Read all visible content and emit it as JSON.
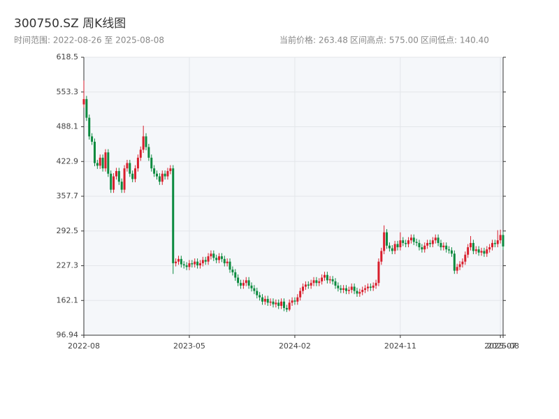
{
  "chart_data": {
    "type": "candlestick",
    "title": "300750.SZ 周K线图",
    "subtitle": "时间范围: 2022-08-26 至 2025-08-08",
    "stats": [
      "当前价格: 263.48",
      "区间高点: 575.00",
      "区间低点: 140.40"
    ],
    "up_color": "#d81e2c",
    "down_color": "#0b8a3e",
    "grid": true,
    "ylim": [
      96.94,
      618.5
    ],
    "yticks": [
      96.94,
      162.1,
      227.3,
      292.5,
      357.7,
      422.9,
      488.1,
      553.3,
      618.5
    ],
    "categories": [
      "2022-08",
      null,
      null,
      null,
      null,
      null,
      null,
      null,
      null,
      null,
      null,
      null,
      null,
      null,
      null,
      null,
      null,
      null,
      null,
      null,
      null,
      null,
      null,
      null,
      null,
      null,
      null,
      null,
      null,
      null,
      null,
      null,
      null,
      null,
      null,
      null,
      null,
      null,
      null,
      "2023-05",
      null,
      null,
      null,
      null,
      null,
      null,
      null,
      null,
      null,
      null,
      null,
      null,
      null,
      null,
      null,
      null,
      null,
      null,
      null,
      null,
      null,
      null,
      null,
      null,
      null,
      null,
      null,
      null,
      null,
      null,
      null,
      null,
      null,
      null,
      null,
      null,
      null,
      null,
      "2024-02",
      null,
      null,
      null,
      null,
      null,
      null,
      null,
      null,
      null,
      null,
      null,
      null,
      null,
      null,
      null,
      null,
      null,
      null,
      null,
      null,
      null,
      null,
      null,
      null,
      null,
      null,
      null,
      null,
      null,
      null,
      null,
      null,
      null,
      null,
      null,
      null,
      null,
      null,
      "2024-11",
      null,
      null,
      null,
      null,
      null,
      null,
      null,
      null,
      null,
      null,
      null,
      null,
      null,
      null,
      null,
      null,
      null,
      null,
      null,
      null,
      null,
      null,
      null,
      null,
      null,
      null,
      null,
      null,
      null,
      null,
      null,
      null,
      null,
      null,
      null,
      null,
      "2025-07",
      "2025-08"
    ],
    "open": [
      530,
      540,
      505,
      470,
      460,
      420,
      415,
      430,
      410,
      440,
      400,
      370,
      395,
      405,
      385,
      370,
      410,
      420,
      400,
      390,
      410,
      430,
      445,
      470,
      450,
      430,
      410,
      400,
      395,
      385,
      400,
      395,
      405,
      410,
      232,
      235,
      240,
      230,
      228,
      225,
      232,
      230,
      235,
      228,
      232,
      238,
      235,
      245,
      250,
      242,
      238,
      245,
      240,
      232,
      235,
      220,
      215,
      205,
      195,
      190,
      195,
      200,
      190,
      185,
      180,
      172,
      168,
      160,
      165,
      158,
      160,
      155,
      158,
      152,
      160,
      148,
      145,
      158,
      162,
      160,
      168,
      180,
      188,
      192,
      190,
      195,
      200,
      195,
      198,
      205,
      210,
      200,
      202,
      198,
      190,
      185,
      182,
      185,
      180,
      182,
      188,
      180,
      175,
      178,
      182,
      185,
      188,
      186,
      190,
      195,
      235,
      255,
      290,
      265,
      260,
      255,
      268,
      262,
      275,
      270,
      268,
      275,
      280,
      272,
      270,
      262,
      258,
      265,
      270,
      268,
      275,
      280,
      270,
      262,
      265,
      258,
      256,
      250,
      218,
      225,
      230,
      235,
      248,
      262,
      270,
      255,
      258,
      252,
      255,
      250,
      258,
      262,
      270,
      268,
      275,
      285
    ],
    "high": [
      575,
      546,
      511,
      476,
      466,
      426,
      436,
      436,
      446,
      446,
      406,
      401,
      411,
      411,
      391,
      416,
      426,
      426,
      406,
      416,
      436,
      451,
      490,
      476,
      456,
      436,
      416,
      406,
      401,
      406,
      406,
      411,
      416,
      416,
      241,
      246,
      246,
      236,
      234,
      238,
      238,
      241,
      241,
      238,
      244,
      244,
      251,
      256,
      256,
      248,
      251,
      251,
      246,
      241,
      241,
      226,
      221,
      211,
      201,
      201,
      206,
      206,
      196,
      191,
      186,
      178,
      174,
      171,
      171,
      166,
      166,
      164,
      164,
      166,
      166,
      154,
      164,
      168,
      168,
      174,
      186,
      194,
      198,
      198,
      201,
      206,
      206,
      204,
      211,
      216,
      216,
      208,
      208,
      204,
      196,
      191,
      191,
      191,
      188,
      194,
      194,
      186,
      184,
      188,
      191,
      194,
      194,
      196,
      201,
      241,
      261,
      303,
      296,
      271,
      266,
      274,
      274,
      290,
      281,
      276,
      281,
      286,
      286,
      278,
      276,
      268,
      271,
      276,
      276,
      281,
      286,
      286,
      276,
      271,
      271,
      264,
      262,
      256,
      231,
      236,
      241,
      254,
      268,
      283,
      276,
      264,
      264,
      261,
      261,
      264,
      268,
      276,
      276,
      294,
      295,
      291
    ],
    "low": [
      524,
      499,
      464,
      454,
      414,
      409,
      409,
      404,
      404,
      394,
      364,
      364,
      389,
      379,
      364,
      364,
      404,
      394,
      384,
      384,
      404,
      424,
      439,
      444,
      424,
      404,
      394,
      389,
      379,
      379,
      389,
      389,
      399,
      212,
      226,
      229,
      224,
      222,
      219,
      219,
      224,
      224,
      222,
      222,
      226,
      229,
      229,
      239,
      236,
      232,
      232,
      234,
      226,
      226,
      214,
      209,
      199,
      189,
      184,
      184,
      189,
      184,
      179,
      174,
      166,
      162,
      154,
      154,
      152,
      152,
      149,
      149,
      146,
      146,
      142,
      140.4,
      142,
      152,
      154,
      154,
      162,
      174,
      182,
      184,
      184,
      189,
      189,
      189,
      192,
      199,
      194,
      194,
      192,
      184,
      179,
      176,
      176,
      174,
      174,
      176,
      174,
      169,
      169,
      172,
      176,
      179,
      180,
      180,
      184,
      189,
      229,
      249,
      259,
      254,
      249,
      249,
      256,
      256,
      264,
      262,
      262,
      269,
      266,
      264,
      256,
      252,
      252,
      259,
      262,
      262,
      269,
      264,
      256,
      256,
      252,
      250,
      244,
      212,
      212,
      219,
      224,
      229,
      242,
      256,
      249,
      249,
      246,
      246,
      244,
      244,
      252,
      256,
      262,
      262,
      269,
      257
    ],
    "close": [
      540,
      505,
      470,
      460,
      420,
      415,
      430,
      410,
      440,
      400,
      370,
      395,
      405,
      385,
      370,
      410,
      420,
      400,
      390,
      410,
      430,
      445,
      470,
      450,
      430,
      410,
      400,
      395,
      385,
      400,
      395,
      405,
      410,
      232,
      235,
      240,
      230,
      228,
      225,
      232,
      230,
      235,
      228,
      232,
      238,
      235,
      245,
      250,
      242,
      238,
      245,
      240,
      232,
      235,
      220,
      215,
      205,
      195,
      190,
      195,
      200,
      190,
      185,
      180,
      172,
      168,
      160,
      165,
      158,
      160,
      155,
      158,
      152,
      160,
      148,
      145,
      158,
      162,
      160,
      168,
      180,
      188,
      192,
      190,
      195,
      200,
      195,
      198,
      205,
      210,
      200,
      202,
      198,
      190,
      185,
      182,
      185,
      180,
      182,
      188,
      180,
      175,
      178,
      182,
      185,
      188,
      186,
      190,
      195,
      235,
      255,
      290,
      265,
      260,
      255,
      268,
      262,
      275,
      270,
      268,
      275,
      280,
      272,
      270,
      262,
      258,
      265,
      270,
      268,
      275,
      280,
      270,
      262,
      265,
      258,
      256,
      250,
      218,
      225,
      230,
      235,
      248,
      262,
      270,
      255,
      258,
      252,
      255,
      250,
      258,
      262,
      270,
      268,
      275,
      285,
      263.48
    ]
  }
}
